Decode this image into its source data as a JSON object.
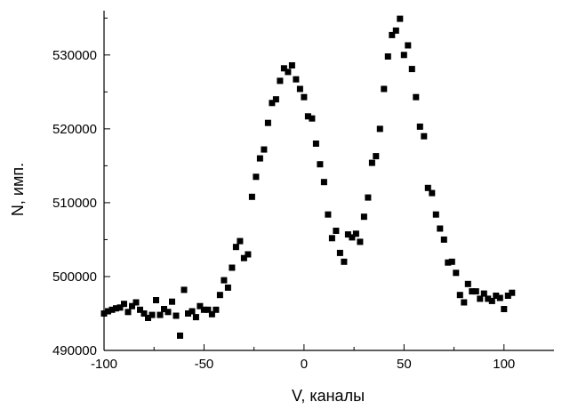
{
  "chart_data": {
    "type": "scatter",
    "title": "",
    "xlabel": "V, каналы",
    "ylabel": "N, имп.",
    "xlim": [
      -100,
      125
    ],
    "ylim": [
      490000,
      536000
    ],
    "x_ticks": [
      -100,
      -50,
      0,
      50,
      100
    ],
    "x_tick_labels": [
      "-100",
      "-50",
      "0",
      "50",
      "100"
    ],
    "y_ticks": [
      490000,
      500000,
      510000,
      520000,
      530000
    ],
    "y_tick_labels": [
      "490000",
      "500000",
      "510000",
      "520000",
      "530000"
    ],
    "grid": false,
    "legend": false,
    "marker": "square",
    "marker_color": "#000000",
    "series": [
      {
        "x": [
          -100,
          -98,
          -96,
          -94,
          -92,
          -90,
          -88,
          -86,
          -84,
          -82,
          -80,
          -78,
          -76,
          -74,
          -72,
          -70,
          -68,
          -66,
          -64,
          -62,
          -60,
          -58,
          -56,
          -54,
          -52,
          -50,
          -48,
          -46,
          -44,
          -42,
          -40,
          -38,
          -36,
          -34,
          -32,
          -30,
          -28,
          -26,
          -24,
          -22,
          -20,
          -18,
          -16,
          -14,
          -12,
          -10,
          -8,
          -6,
          -4,
          -2,
          0,
          2,
          4,
          6,
          8,
          10,
          12,
          14,
          16,
          18,
          20,
          22,
          24,
          26,
          28,
          30,
          32,
          34,
          36,
          38,
          40,
          42,
          44,
          46,
          48,
          50,
          52,
          54,
          56,
          58,
          60,
          62,
          64,
          66,
          68,
          70,
          72,
          74,
          76,
          78,
          80,
          82,
          84,
          86,
          88,
          90,
          92,
          94,
          96,
          98,
          100,
          102,
          104
        ],
        "y": [
          495000,
          495300,
          495500,
          495700,
          495800,
          496300,
          495200,
          496000,
          496500,
          495500,
          495000,
          494400,
          494800,
          496800,
          494800,
          495600,
          495200,
          496600,
          494700,
          492000,
          498200,
          495000,
          495300,
          494500,
          496000,
          495500,
          495500,
          494900,
          495500,
          497500,
          499500,
          498500,
          501200,
          504000,
          504800,
          502500,
          503000,
          510800,
          513500,
          516000,
          517200,
          520800,
          523500,
          524000,
          526500,
          528200,
          527700,
          528600,
          526700,
          525400,
          524300,
          521700,
          521400,
          518000,
          515200,
          512800,
          508400,
          505200,
          506200,
          503200,
          502000,
          505700,
          505300,
          505800,
          504700,
          508100,
          510700,
          515400,
          516300,
          520000,
          525400,
          529800,
          532700,
          533300,
          534900,
          530000,
          531300,
          528100,
          524300,
          520300,
          519000,
          512000,
          511300,
          508400,
          506500,
          505000,
          501900,
          502000,
          500500,
          497500,
          496500,
          499000,
          498000,
          498000,
          497000,
          497700,
          497000,
          496700,
          497400,
          497100,
          495600,
          497400,
          497800
        ]
      }
    ]
  }
}
